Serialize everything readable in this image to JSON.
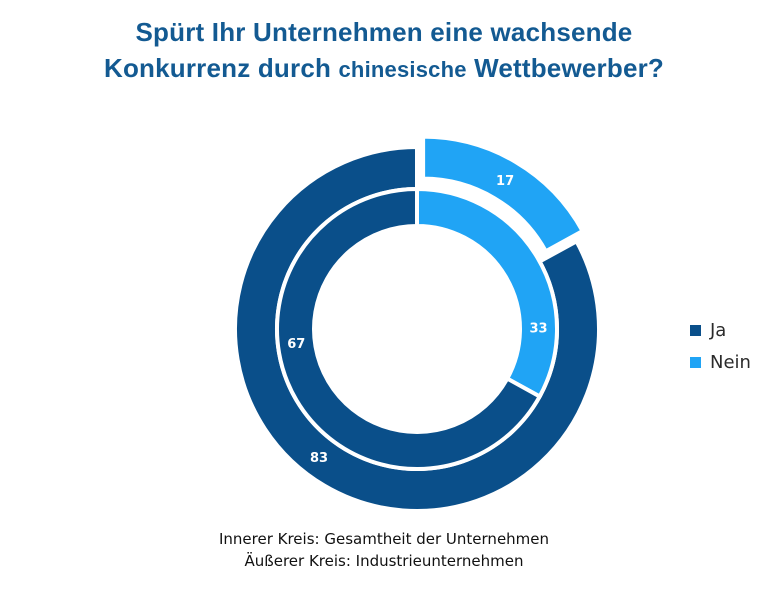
{
  "title": {
    "line1": "Spürt Ihr Unternehmen eine wachsende",
    "line2a": "Konkurrenz durch ",
    "line2b": "chinesische",
    "line2c": " Wettbewerber?"
  },
  "colors": {
    "ja": "#0a4f8a",
    "nein": "#20a4f5"
  },
  "legend": [
    {
      "label": "Ja",
      "color": "#0a4f8a"
    },
    {
      "label": "Nein",
      "color": "#20a4f5"
    }
  ],
  "caption": {
    "line1": "Innerer Kreis: Gesamtheit der Unternehmen",
    "line2": "Äußerer Kreis: Industrieunternehmen"
  },
  "chart_data": {
    "type": "pie",
    "subtype": "nested-donut",
    "categories": [
      "Ja",
      "Nein"
    ],
    "series": [
      {
        "name": "Gesamtheit der Unternehmen",
        "ring": "inner",
        "values": [
          67,
          33
        ]
      },
      {
        "name": "Industrieunternehmen",
        "ring": "outer",
        "values": [
          83,
          17
        ]
      }
    ],
    "exploded": {
      "ring": "outer",
      "category": "Nein"
    },
    "legend_position": "right"
  }
}
